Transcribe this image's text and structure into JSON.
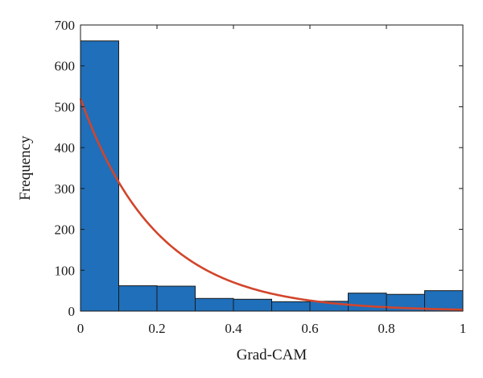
{
  "chart_data": {
    "type": "bar",
    "subtype": "histogram",
    "title": "",
    "xlabel": "Grad-CAM",
    "ylabel": "Frequency",
    "xlim": [
      0,
      1
    ],
    "ylim": [
      0,
      700
    ],
    "xticks": [
      0,
      0.2,
      0.4,
      0.6,
      0.8,
      1
    ],
    "xtick_labels": [
      "0",
      "0.2",
      "0.4",
      "0.6",
      "0.8",
      "1"
    ],
    "yticks": [
      0,
      100,
      200,
      300,
      400,
      500,
      600,
      700
    ],
    "ytick_labels": [
      "0",
      "100",
      "200",
      "300",
      "400",
      "500",
      "600",
      "700"
    ],
    "bin_edges": [
      0,
      0.1,
      0.2,
      0.3,
      0.4,
      0.5,
      0.6,
      0.7,
      0.8,
      0.9,
      1.0
    ],
    "values": [
      661,
      62,
      61,
      31,
      29,
      23,
      24,
      44,
      41,
      50
    ],
    "fit_curve": {
      "type": "exponential",
      "a": 520,
      "b": 5.0
    },
    "grid": false,
    "colors": {
      "bar_fill": "#1f6fba",
      "bar_edge": "#1a1a1a",
      "curve": "#d2452b"
    }
  }
}
